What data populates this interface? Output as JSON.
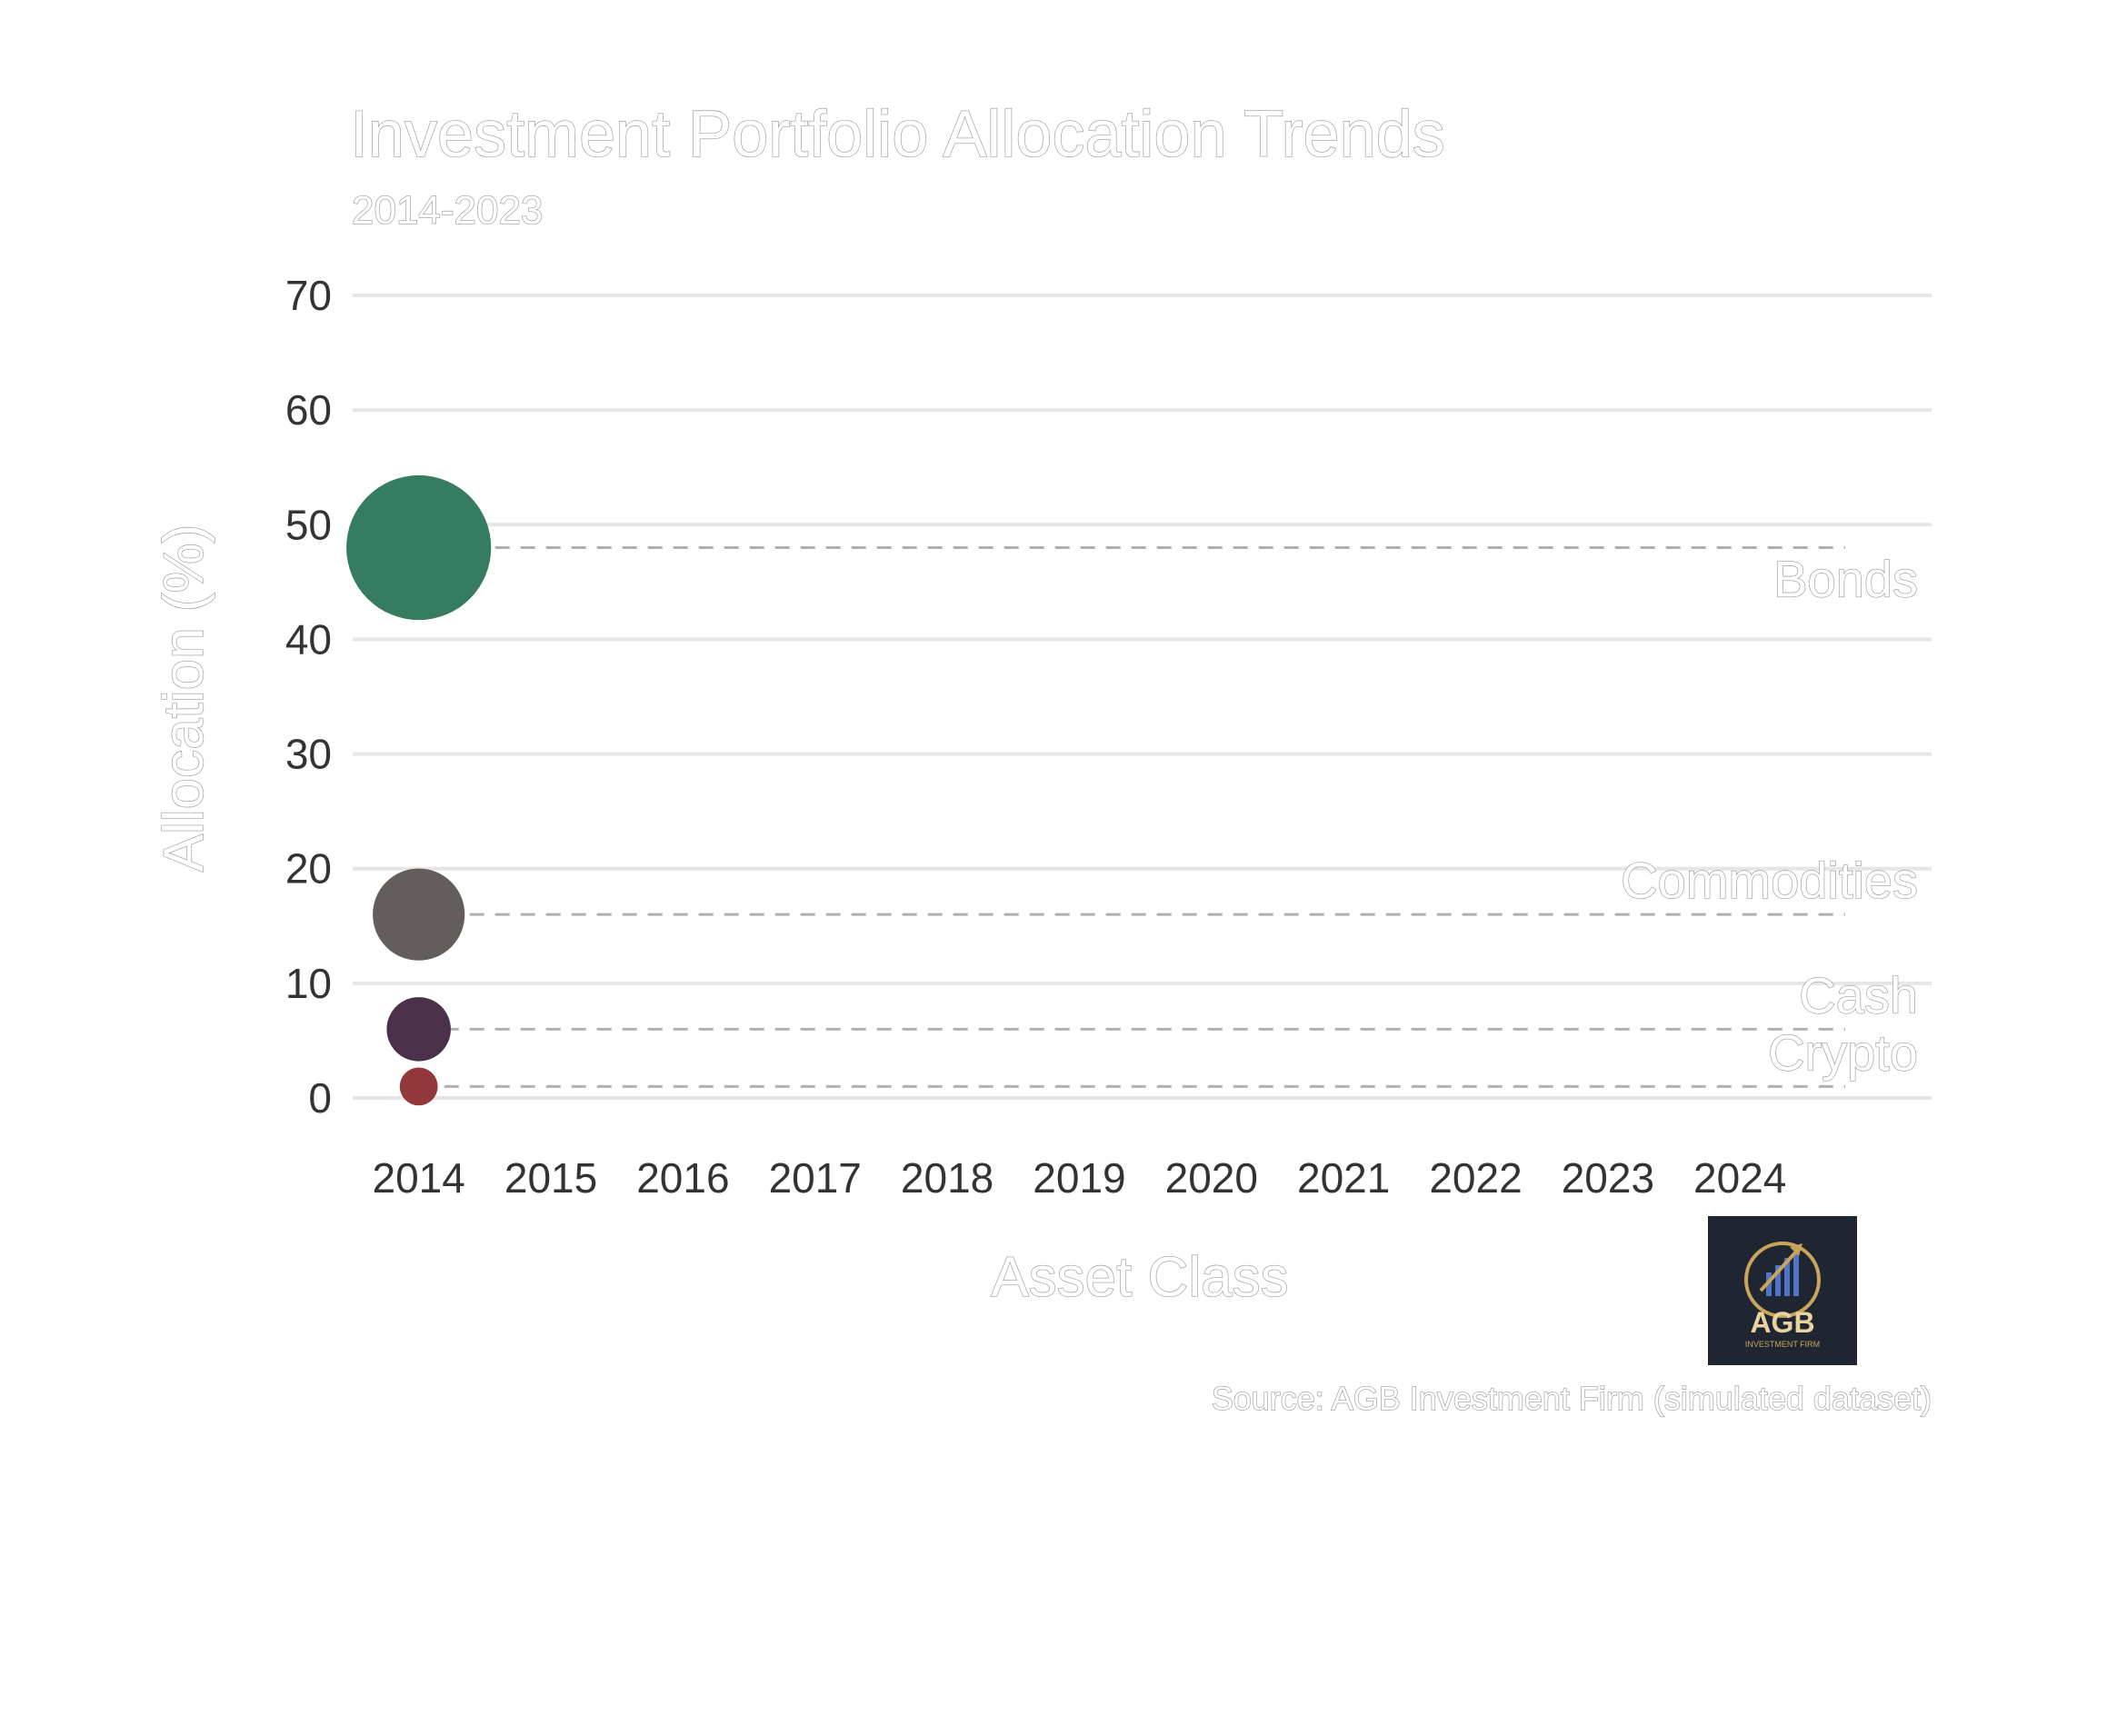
{
  "chart_data": {
    "type": "scatter",
    "title": "Investment Portfolio Allocation Trends",
    "subtitle": "2014-2023",
    "xlabel": "Asset Class",
    "ylabel": "Allocation (%)",
    "source": "Source: AGB Investment Firm (simulated dataset)",
    "x_ticks": [
      "2014",
      "2015",
      "2016",
      "2017",
      "2018",
      "2019",
      "2020",
      "2021",
      "2022",
      "2023",
      "2024"
    ],
    "xlim": [
      2013.5,
      2025.45
    ],
    "ylim": [
      0,
      70
    ],
    "y_ticks": [
      0,
      10,
      20,
      30,
      40,
      50,
      60,
      70
    ],
    "grid": "horizontal",
    "series": [
      {
        "name": "Bonds",
        "x": 2014,
        "y": 48,
        "color": "#367c61"
      },
      {
        "name": "Commodities",
        "x": 2014,
        "y": 16,
        "color": "#635e5b"
      },
      {
        "name": "Cash",
        "x": 2014,
        "y": 6,
        "color": "#4b3049"
      },
      {
        "name": "Crypto",
        "x": 2014,
        "y": 1,
        "color": "#92383b"
      }
    ],
    "bubble_size_by": "y",
    "reference_line_style": "dashed",
    "reference_line_color": "#b0b0b0",
    "grid_color": "#e6e6e6"
  },
  "logo": {
    "name": "agb-logo",
    "text": "AGB",
    "subtext": "INVESTMENT FIRM",
    "background": "#1f2631",
    "accent": "#c9a45c"
  }
}
